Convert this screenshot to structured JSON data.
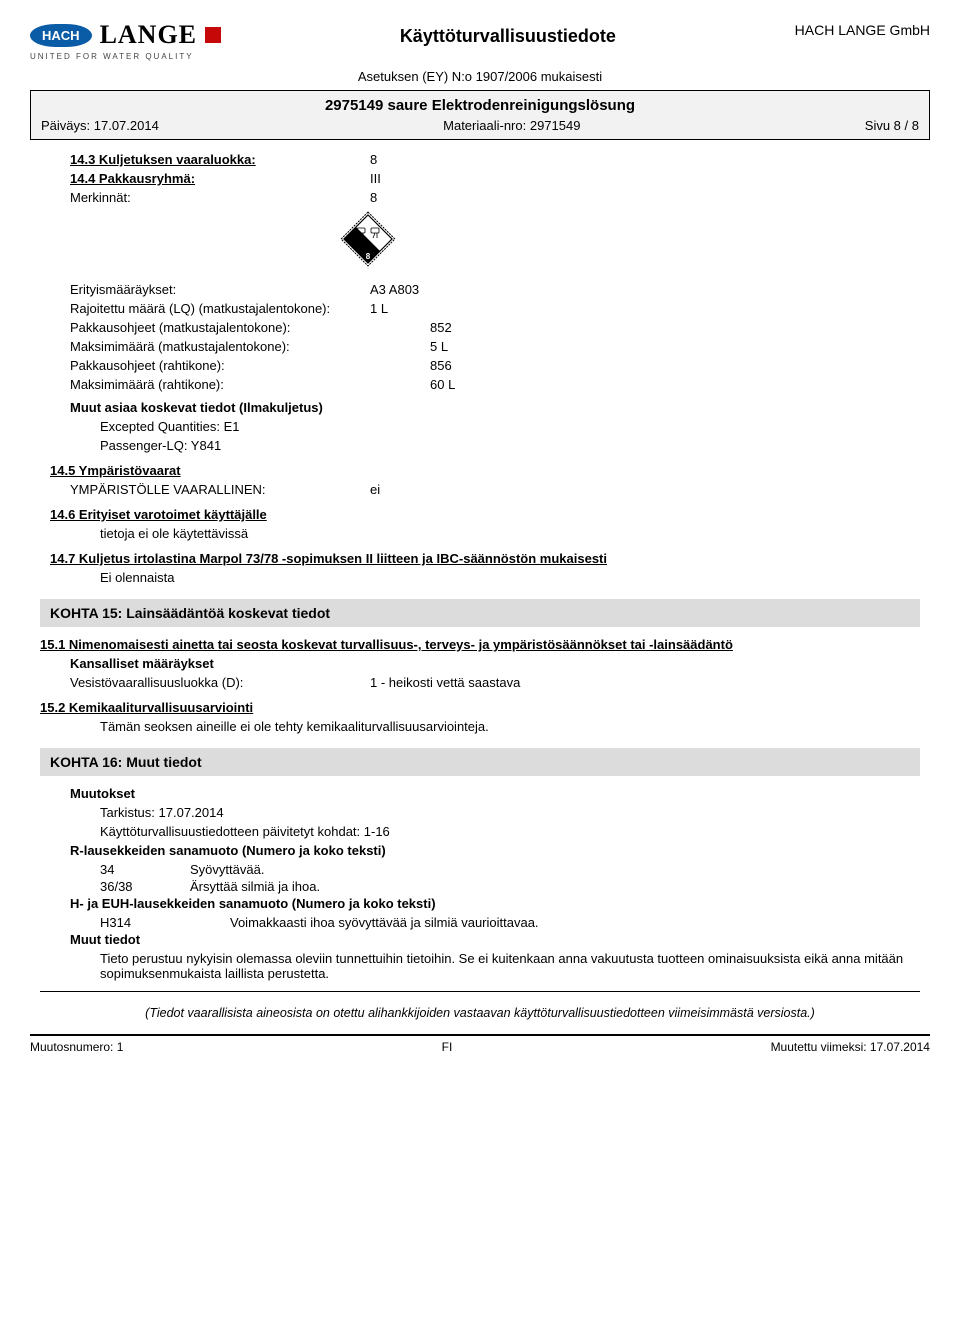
{
  "header": {
    "logo_brand1": "HACH",
    "logo_brand2": "LANGE",
    "tagline": "UNITED FOR WATER QUALITY",
    "doc_title": "Käyttöturvallisuustiedote",
    "company": "HACH LANGE GmbH",
    "regulation": "Asetuksen (EY) N:o 1907/2006 mukaisesti"
  },
  "product_box": {
    "product_code_name": "2975149  saure Elektrodenreinigungslösung",
    "date_label": "Päiväys: 17.07.2014",
    "material_label": "Materiaali-nro: 2971549",
    "page_label": "Sivu 8 / 8"
  },
  "sec14": {
    "l_143": "14.3 Kuljetuksen vaaraluokka:",
    "v_143": "8",
    "l_144": "14.4 Pakkausryhmä:",
    "v_144": "III",
    "l_mark": "Merkinnät:",
    "v_mark": "8",
    "l_special": "Erityismääräykset:",
    "v_special": "A3 A803",
    "l_lq": "Rajoitettu määrä (LQ) (matkustajalentokone):",
    "v_lq": "1 L",
    "l_pack_pass": "Pakkausohjeet (matkustajalentokone):",
    "v_pack_pass": "852",
    "l_max_pass": "Maksimimäärä (matkustajalentokone):",
    "v_max_pass": "5 L",
    "l_pack_cargo": "Pakkausohjeet (rahtikone):",
    "v_pack_cargo": "856",
    "l_max_cargo": "Maksimimäärä (rahtikone):",
    "v_max_cargo": "60 L",
    "l_air_header": "Muut asiaa koskevat tiedot (Ilmakuljetus)",
    "air_line1": "Excepted Quantities: E1",
    "air_line2": "Passenger-LQ: Y841",
    "l_145": "14.5 Ympäristövaarat",
    "l_env_hazard": "YMPÄRISTÖLLE VAARALLINEN:",
    "v_env_hazard": "ei",
    "l_146": "14.6 Erityiset varotoimet käyttäjälle",
    "v_146": "tietoja ei ole käytettävissä",
    "l_147": "14.7 Kuljetus irtolastina Marpol 73/78 -sopimuksen II liitteen ja IBC-säännöstön mukaisesti",
    "v_147": "Ei olennaista",
    "hazard_class_symbol": "8"
  },
  "sec15": {
    "title": "KOHTA 15: Lainsäädäntöä koskevat tiedot",
    "l_151": "15.1 Nimenomaisesti ainetta tai seosta koskevat turvallisuus-, terveys- ja ympäristösäännökset tai -lainsäädäntö",
    "l_national": "Kansalliset määräykset",
    "l_water": "Vesistövaarallisuusluokka (D):",
    "v_water": "1 - heikosti vettä saastava",
    "l_152": "15.2 Kemikaaliturvallisuusarviointi",
    "v_152": "Tämän seoksen aineille ei ole tehty kemikaaliturvallisuusarviointeja."
  },
  "sec16": {
    "title": "KOHTA 16: Muut tiedot",
    "l_changes": "Muutokset",
    "changes_line1": "Tarkistus: 17.07.2014",
    "changes_line2": "Käyttöturvallisuustiedotteen päivitetyt kohdat:  1-16",
    "l_rphrases": "R-lausekkeiden sanamuoto (Numero ja koko teksti)",
    "r_rows": [
      {
        "num": "34",
        "text": "Syövyttävää."
      },
      {
        "num": "36/38",
        "text": "Ärsyttää silmiä ja ihoa."
      }
    ],
    "l_hphrases": "H- ja EUH-lausekkeiden sanamuoto (Numero ja koko teksti)",
    "h_rows": [
      {
        "num": "H314",
        "text": "Voimakkaasti ihoa syövyttävää ja silmiä vaurioittavaa."
      }
    ],
    "l_other": "Muut tiedot",
    "other_text": "Tieto perustuu nykyisin olemassa oleviin tunnettuihin tietoihin. Se ei kuitenkaan anna vakuutusta tuotteen ominaisuuksista eikä anna mitään sopimuksenmukaista laillista perustetta."
  },
  "footer_note": "(Tiedot vaarallisista aineosista on otettu alihankkijoiden vastaavan käyttöturvallisuustiedotteen viimeisimmästä versiosta.)",
  "bottom": {
    "left": "Muutosnumero: 1",
    "center": "FI",
    "right": "Muutettu viimeksi: 17.07.2014"
  }
}
